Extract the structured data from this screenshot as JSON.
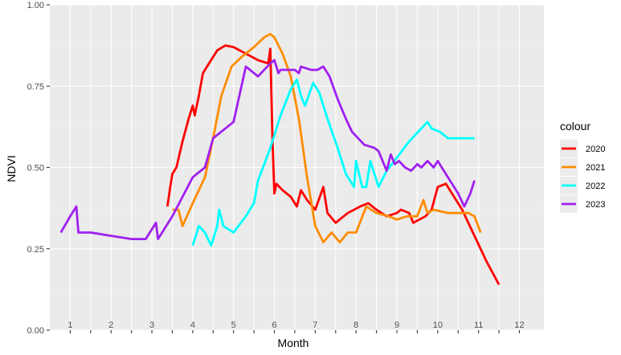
{
  "chart_data": {
    "type": "line",
    "xlabel": "Month",
    "ylabel": "NDVI",
    "xlim": [
      0.5,
      12.6
    ],
    "ylim": [
      0,
      1
    ],
    "y_ticks": [
      {
        "value": 0.0,
        "label": "0.00"
      },
      {
        "value": 0.25,
        "label": "0.25"
      },
      {
        "value": 0.5,
        "label": "0.50"
      },
      {
        "value": 0.75,
        "label": "0.75"
      },
      {
        "value": 1.0,
        "label": "1.00"
      }
    ],
    "month_labels": [
      {
        "x": 1,
        "label": "1"
      },
      {
        "x": 2,
        "label": "2"
      },
      {
        "x": 3,
        "label": "3"
      },
      {
        "x": 4,
        "label": "4"
      },
      {
        "x": 5,
        "label": "5"
      },
      {
        "x": 6,
        "label": "6"
      },
      {
        "x": 7,
        "label": "7"
      },
      {
        "x": 8,
        "label": "8"
      },
      {
        "x": 9,
        "label": "9"
      },
      {
        "x": 10,
        "label": "10"
      },
      {
        "x": 11,
        "label": "11"
      },
      {
        "x": 12,
        "label": "12"
      }
    ],
    "x_ticks": [
      1,
      1.5,
      2,
      2.5,
      3,
      3.5,
      4,
      4.5,
      5,
      5.5,
      6,
      6.5,
      7,
      7.5,
      8,
      8.5,
      9,
      9.5,
      10,
      10.5,
      11,
      11.5,
      12
    ],
    "grid": true,
    "legend": {
      "title": "colour",
      "position": "right"
    },
    "series": [
      {
        "name": "2020",
        "color": "#ff0000",
        "points": [
          [
            3.38,
            0.38
          ],
          [
            3.45,
            0.44
          ],
          [
            3.5,
            0.48
          ],
          [
            3.6,
            0.5
          ],
          [
            3.75,
            0.58
          ],
          [
            3.9,
            0.65
          ],
          [
            4.0,
            0.69
          ],
          [
            4.05,
            0.66
          ],
          [
            4.15,
            0.72
          ],
          [
            4.25,
            0.79
          ],
          [
            4.4,
            0.82
          ],
          [
            4.6,
            0.86
          ],
          [
            4.8,
            0.875
          ],
          [
            5.0,
            0.87
          ],
          [
            5.3,
            0.85
          ],
          [
            5.6,
            0.83
          ],
          [
            5.85,
            0.82
          ],
          [
            5.9,
            0.865
          ],
          [
            5.95,
            0.6
          ],
          [
            6.0,
            0.42
          ],
          [
            6.05,
            0.45
          ],
          [
            6.2,
            0.43
          ],
          [
            6.4,
            0.41
          ],
          [
            6.55,
            0.38
          ],
          [
            6.65,
            0.43
          ],
          [
            6.8,
            0.4
          ],
          [
            7.0,
            0.37
          ],
          [
            7.2,
            0.44
          ],
          [
            7.3,
            0.36
          ],
          [
            7.5,
            0.33
          ],
          [
            7.8,
            0.36
          ],
          [
            8.1,
            0.38
          ],
          [
            8.3,
            0.39
          ],
          [
            8.5,
            0.37
          ],
          [
            8.75,
            0.35
          ],
          [
            9.0,
            0.36
          ],
          [
            9.1,
            0.37
          ],
          [
            9.3,
            0.36
          ],
          [
            9.4,
            0.33
          ],
          [
            9.7,
            0.35
          ],
          [
            9.85,
            0.37
          ],
          [
            10.0,
            0.44
          ],
          [
            10.2,
            0.45
          ],
          [
            10.4,
            0.41
          ],
          [
            10.6,
            0.37
          ],
          [
            10.9,
            0.29
          ],
          [
            11.2,
            0.21
          ],
          [
            11.5,
            0.14
          ]
        ]
      },
      {
        "name": "2021",
        "color": "#ff8c00",
        "points": [
          [
            3.5,
            0.37
          ],
          [
            3.65,
            0.37
          ],
          [
            3.75,
            0.32
          ],
          [
            4.0,
            0.39
          ],
          [
            4.3,
            0.47
          ],
          [
            4.5,
            0.59
          ],
          [
            4.7,
            0.72
          ],
          [
            4.95,
            0.81
          ],
          [
            5.2,
            0.84
          ],
          [
            5.5,
            0.87
          ],
          [
            5.75,
            0.9
          ],
          [
            5.9,
            0.91
          ],
          [
            6.0,
            0.9
          ],
          [
            6.2,
            0.85
          ],
          [
            6.4,
            0.78
          ],
          [
            6.6,
            0.65
          ],
          [
            6.8,
            0.47
          ],
          [
            7.0,
            0.32
          ],
          [
            7.2,
            0.27
          ],
          [
            7.4,
            0.3
          ],
          [
            7.6,
            0.27
          ],
          [
            7.8,
            0.3
          ],
          [
            8.0,
            0.3
          ],
          [
            8.25,
            0.38
          ],
          [
            8.5,
            0.36
          ],
          [
            8.8,
            0.35
          ],
          [
            9.0,
            0.34
          ],
          [
            9.25,
            0.35
          ],
          [
            9.5,
            0.35
          ],
          [
            9.65,
            0.4
          ],
          [
            9.75,
            0.36
          ],
          [
            9.9,
            0.37
          ],
          [
            10.25,
            0.36
          ],
          [
            10.75,
            0.36
          ],
          [
            10.9,
            0.35
          ],
          [
            11.05,
            0.3
          ]
        ]
      },
      {
        "name": "2022",
        "color": "#00ffff",
        "points": [
          [
            4.0,
            0.26
          ],
          [
            4.15,
            0.32
          ],
          [
            4.3,
            0.3
          ],
          [
            4.45,
            0.26
          ],
          [
            4.6,
            0.32
          ],
          [
            4.65,
            0.37
          ],
          [
            4.75,
            0.32
          ],
          [
            5.0,
            0.3
          ],
          [
            5.3,
            0.35
          ],
          [
            5.5,
            0.39
          ],
          [
            5.6,
            0.46
          ],
          [
            5.9,
            0.56
          ],
          [
            6.15,
            0.66
          ],
          [
            6.4,
            0.74
          ],
          [
            6.55,
            0.77
          ],
          [
            6.65,
            0.72
          ],
          [
            6.75,
            0.69
          ],
          [
            6.95,
            0.76
          ],
          [
            7.1,
            0.73
          ],
          [
            7.3,
            0.65
          ],
          [
            7.55,
            0.56
          ],
          [
            7.75,
            0.48
          ],
          [
            7.95,
            0.44
          ],
          [
            8.0,
            0.52
          ],
          [
            8.15,
            0.44
          ],
          [
            8.25,
            0.44
          ],
          [
            8.35,
            0.52
          ],
          [
            8.5,
            0.46
          ],
          [
            8.55,
            0.44
          ],
          [
            8.75,
            0.49
          ],
          [
            9.0,
            0.53
          ],
          [
            9.3,
            0.58
          ],
          [
            9.6,
            0.62
          ],
          [
            9.75,
            0.64
          ],
          [
            9.85,
            0.62
          ],
          [
            10.05,
            0.61
          ],
          [
            10.25,
            0.59
          ],
          [
            10.6,
            0.59
          ],
          [
            10.9,
            0.59
          ]
        ]
      },
      {
        "name": "2023",
        "color": "#a020f0",
        "points": [
          [
            0.77,
            0.3
          ],
          [
            1.0,
            0.35
          ],
          [
            1.15,
            0.38
          ],
          [
            1.2,
            0.3
          ],
          [
            1.5,
            0.3
          ],
          [
            2.0,
            0.29
          ],
          [
            2.5,
            0.28
          ],
          [
            2.85,
            0.28
          ],
          [
            3.1,
            0.33
          ],
          [
            3.15,
            0.28
          ],
          [
            3.5,
            0.35
          ],
          [
            3.75,
            0.41
          ],
          [
            4.0,
            0.47
          ],
          [
            4.3,
            0.5
          ],
          [
            4.5,
            0.59
          ],
          [
            5.0,
            0.64
          ],
          [
            5.3,
            0.81
          ],
          [
            5.6,
            0.78
          ],
          [
            5.9,
            0.82
          ],
          [
            6.0,
            0.83
          ],
          [
            6.1,
            0.79
          ],
          [
            6.15,
            0.8
          ],
          [
            6.5,
            0.8
          ],
          [
            6.6,
            0.79
          ],
          [
            6.65,
            0.81
          ],
          [
            6.9,
            0.8
          ],
          [
            7.05,
            0.8
          ],
          [
            7.2,
            0.81
          ],
          [
            7.35,
            0.78
          ],
          [
            7.55,
            0.71
          ],
          [
            7.75,
            0.65
          ],
          [
            7.9,
            0.61
          ],
          [
            8.05,
            0.59
          ],
          [
            8.2,
            0.57
          ],
          [
            8.45,
            0.56
          ],
          [
            8.55,
            0.55
          ],
          [
            8.75,
            0.49
          ],
          [
            8.85,
            0.54
          ],
          [
            8.95,
            0.51
          ],
          [
            9.05,
            0.52
          ],
          [
            9.2,
            0.5
          ],
          [
            9.35,
            0.49
          ],
          [
            9.5,
            0.51
          ],
          [
            9.6,
            0.5
          ],
          [
            9.75,
            0.52
          ],
          [
            9.9,
            0.5
          ],
          [
            10.0,
            0.52
          ],
          [
            10.1,
            0.5
          ],
          [
            10.15,
            0.49
          ],
          [
            10.3,
            0.46
          ],
          [
            10.5,
            0.42
          ],
          [
            10.65,
            0.38
          ],
          [
            10.8,
            0.42
          ],
          [
            10.9,
            0.46
          ]
        ]
      }
    ]
  }
}
